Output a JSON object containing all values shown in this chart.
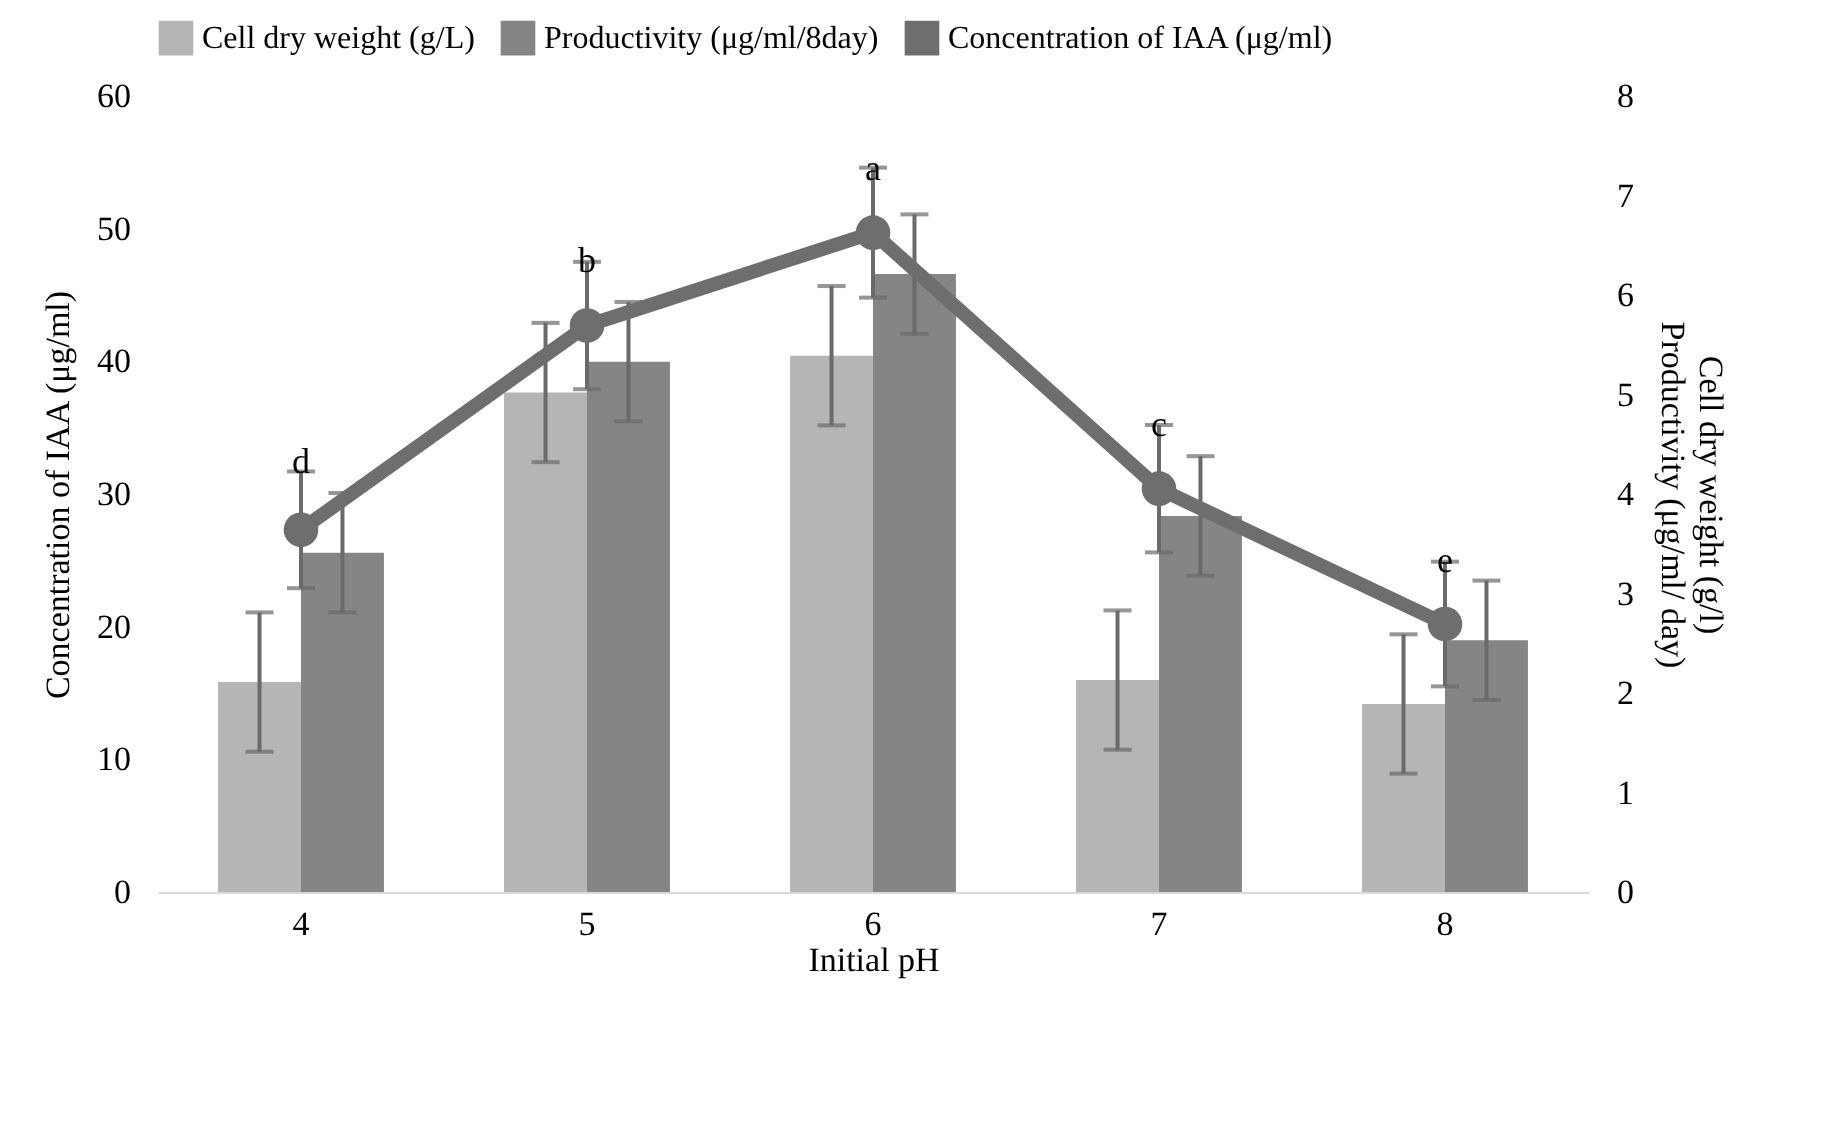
{
  "chart_data": {
    "type": "bar",
    "xlabel": "Initial pH",
    "ylabel": "Concentration of IAA (μg/ml)",
    "y2label": "Cell dry weight (g/l)\nProductivity (μg/ml/ day)",
    "categories": [
      "4",
      "5",
      "6",
      "7",
      "8"
    ],
    "series": [
      {
        "name": "Cell dry weight (g/L)",
        "color": "#b5b5b5",
        "axis": "y2",
        "values": [
          2.11,
          5.02,
          5.39,
          2.13,
          1.89
        ],
        "errors": [
          0.7,
          0.7,
          0.7,
          0.7,
          0.7
        ]
      },
      {
        "name": "Productivity (μg/ml/8day)",
        "color": "#858585",
        "axis": "y2",
        "values": [
          3.41,
          5.33,
          6.21,
          3.78,
          2.53
        ],
        "errors": [
          0.6,
          0.6,
          0.6,
          0.6,
          0.6
        ]
      },
      {
        "name": "Concentration of IAA (μg/ml)",
        "color": "#6e6e6e",
        "type": "line",
        "values": [
          27.3,
          42.7,
          49.7,
          30.4,
          20.2
        ],
        "errors": [
          4.4,
          4.8,
          4.9,
          4.8,
          4.7
        ]
      }
    ],
    "ylim": [
      0,
      60
    ],
    "yticks": [
      0,
      10,
      20,
      30,
      40,
      50,
      60
    ],
    "y2lim": [
      0,
      8
    ],
    "y2ticks": [
      0,
      1,
      2,
      3,
      4,
      5,
      6,
      7,
      8
    ],
    "marker": "circle",
    "line_style": "solid",
    "legend": "top",
    "grid": false,
    "annotations": [
      {
        "text": "d",
        "x": "4",
        "y": 32.3
      },
      {
        "text": "b",
        "x": "5",
        "y": 47.5
      },
      {
        "text": "a",
        "x": "6",
        "y": 54.4
      },
      {
        "text": "c",
        "x": "7",
        "y": 35.1
      },
      {
        "text": "e",
        "x": "8",
        "y": 24.9
      }
    ]
  }
}
